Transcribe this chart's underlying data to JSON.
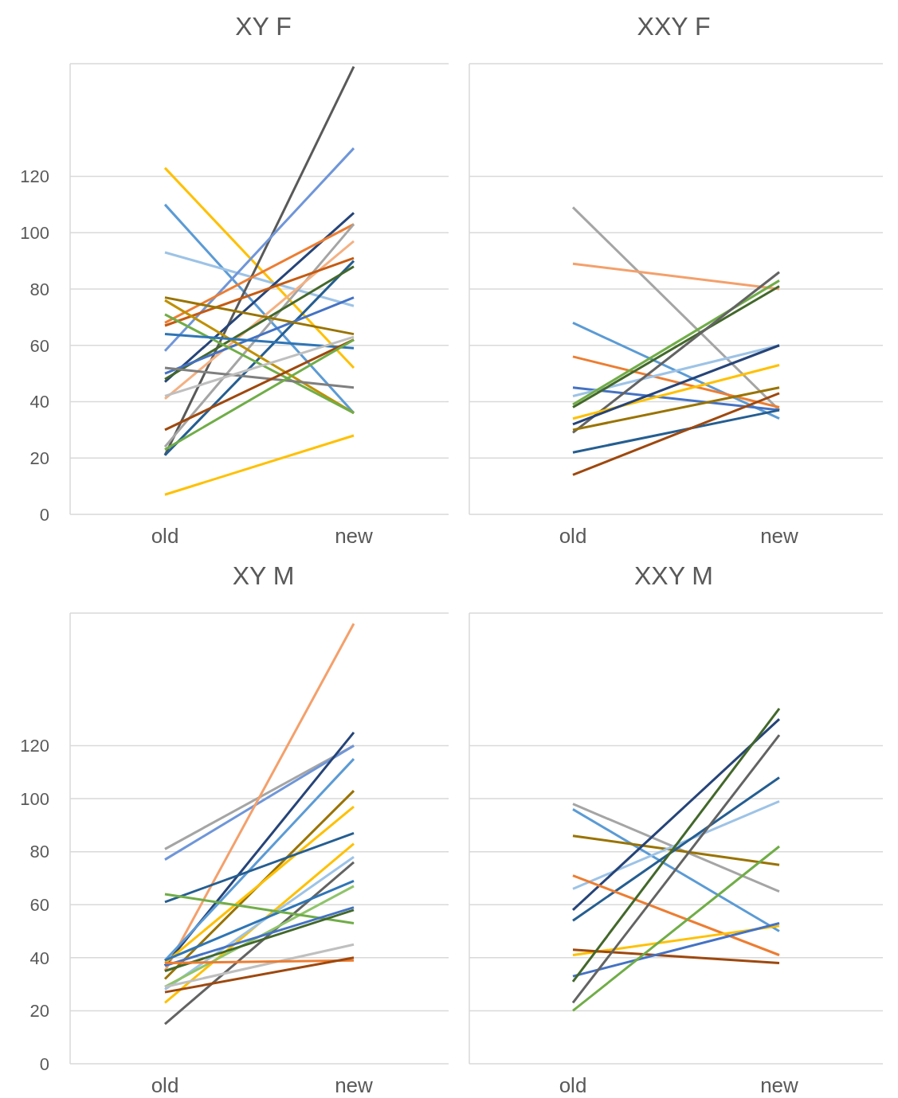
{
  "chart_data": [
    {
      "type": "line",
      "title": "XY F",
      "categories": [
        "old",
        "new"
      ],
      "ylim": [
        0,
        160
      ],
      "yticks": [
        0,
        20,
        40,
        60,
        80,
        100,
        120
      ],
      "grid": "y",
      "marker": "none",
      "series": [
        {
          "color": "#ffc000",
          "values": [
            123,
            52
          ]
        },
        {
          "color": "#5b9bd5",
          "values": [
            110,
            36
          ]
        },
        {
          "color": "#9dc3e6",
          "values": [
            93,
            74
          ]
        },
        {
          "color": "#595959",
          "values": [
            21,
            159
          ]
        },
        {
          "color": "#6f96d9",
          "values": [
            58,
            130
          ]
        },
        {
          "color": "#264478",
          "values": [
            47,
            107
          ]
        },
        {
          "color": "#ed7d31",
          "values": [
            68,
            103
          ]
        },
        {
          "color": "#a5a5a5",
          "values": [
            24,
            103
          ]
        },
        {
          "color": "#f4b183",
          "values": [
            41,
            97
          ]
        },
        {
          "color": "#c55a11",
          "values": [
            67,
            91
          ]
        },
        {
          "color": "#255e91",
          "values": [
            21,
            90
          ]
        },
        {
          "color": "#43682b",
          "values": [
            48,
            88
          ]
        },
        {
          "color": "#4472c4",
          "values": [
            50,
            77
          ]
        },
        {
          "color": "#997300",
          "values": [
            77,
            64
          ]
        },
        {
          "color": "#bf9000",
          "values": [
            76,
            36
          ]
        },
        {
          "color": "#70ad47",
          "values": [
            71,
            36
          ]
        },
        {
          "color": "#2e75b6",
          "values": [
            64,
            59
          ]
        },
        {
          "color": "#7f7f7f",
          "values": [
            52,
            45
          ]
        },
        {
          "color": "#bfbfbf",
          "values": [
            42,
            63
          ]
        },
        {
          "color": "#9e480e",
          "values": [
            30,
            62
          ]
        },
        {
          "color": "#70ad47",
          "values": [
            23,
            62
          ]
        },
        {
          "color": "#ffc000",
          "values": [
            7,
            28
          ]
        }
      ]
    },
    {
      "type": "line",
      "title": "XXY F",
      "categories": [
        "old",
        "new"
      ],
      "ylim": [
        0,
        160
      ],
      "yticks": [
        0,
        20,
        40,
        60,
        80,
        100,
        120
      ],
      "grid": "y",
      "marker": "none",
      "tick_labels": "x",
      "series": [
        {
          "color": "#a5a5a5",
          "values": [
            109,
            37
          ]
        },
        {
          "color": "#f4a06b",
          "values": [
            89,
            80
          ]
        },
        {
          "color": "#5b9bd5",
          "values": [
            68,
            34
          ]
        },
        {
          "color": "#ed7d31",
          "values": [
            56,
            38
          ]
        },
        {
          "color": "#4472c4",
          "values": [
            45,
            37
          ]
        },
        {
          "color": "#9dc3e6",
          "values": [
            42,
            60
          ]
        },
        {
          "color": "#70ad47",
          "values": [
            39,
            83
          ]
        },
        {
          "color": "#43682b",
          "values": [
            38,
            81
          ]
        },
        {
          "color": "#636363",
          "values": [
            29,
            86
          ]
        },
        {
          "color": "#ffc000",
          "values": [
            34,
            53
          ]
        },
        {
          "color": "#264478",
          "values": [
            32,
            60
          ]
        },
        {
          "color": "#997300",
          "values": [
            30,
            45
          ]
        },
        {
          "color": "#255e91",
          "values": [
            22,
            37
          ]
        },
        {
          "color": "#9e480e",
          "values": [
            14,
            43
          ]
        }
      ]
    },
    {
      "type": "line",
      "title": "XY M",
      "categories": [
        "old",
        "new"
      ],
      "ylim": [
        0,
        170
      ],
      "yticks": [
        0,
        20,
        40,
        60,
        80,
        100,
        120
      ],
      "grid": "y",
      "marker": "none",
      "series": [
        {
          "color": "#a5a5a5",
          "values": [
            81,
            120
          ]
        },
        {
          "color": "#6f96d9",
          "values": [
            77,
            120
          ]
        },
        {
          "color": "#f4a06b",
          "values": [
            35,
            166
          ]
        },
        {
          "color": "#264478",
          "values": [
            37,
            125
          ]
        },
        {
          "color": "#5b9bd5",
          "values": [
            39,
            115
          ]
        },
        {
          "color": "#997300",
          "values": [
            32,
            103
          ]
        },
        {
          "color": "#ffc000",
          "values": [
            38,
            97
          ]
        },
        {
          "color": "#255e91",
          "values": [
            61,
            87
          ]
        },
        {
          "color": "#ffc000",
          "values": [
            23,
            83
          ]
        },
        {
          "color": "#9dc3e6",
          "values": [
            28,
            78
          ]
        },
        {
          "color": "#636363",
          "values": [
            15,
            76
          ]
        },
        {
          "color": "#2e75b6",
          "values": [
            39,
            69
          ]
        },
        {
          "color": "#8fc46a",
          "values": [
            29,
            67
          ]
        },
        {
          "color": "#70ad47",
          "values": [
            64,
            53
          ]
        },
        {
          "color": "#4472c4",
          "values": [
            37,
            59
          ]
        },
        {
          "color": "#43682b",
          "values": [
            35,
            58
          ]
        },
        {
          "color": "#bfbfbf",
          "values": [
            29,
            45
          ]
        },
        {
          "color": "#ed7d31",
          "values": [
            38,
            39
          ]
        },
        {
          "color": "#9e480e",
          "values": [
            27,
            40
          ]
        }
      ]
    },
    {
      "type": "line",
      "title": "XXY M",
      "categories": [
        "old",
        "new"
      ],
      "ylim": [
        0,
        170
      ],
      "yticks": [
        0,
        20,
        40,
        60,
        80,
        100,
        120
      ],
      "grid": "y",
      "marker": "none",
      "tick_labels": "x",
      "series": [
        {
          "color": "#a5a5a5",
          "values": [
            98,
            65
          ]
        },
        {
          "color": "#5b9bd5",
          "values": [
            96,
            50
          ]
        },
        {
          "color": "#997300",
          "values": [
            86,
            75
          ]
        },
        {
          "color": "#9dc3e6",
          "values": [
            66,
            99
          ]
        },
        {
          "color": "#264478",
          "values": [
            58,
            130
          ]
        },
        {
          "color": "#255e91",
          "values": [
            54,
            108
          ]
        },
        {
          "color": "#ed7d31",
          "values": [
            71,
            41
          ]
        },
        {
          "color": "#ffc000",
          "values": [
            41,
            52
          ]
        },
        {
          "color": "#9e480e",
          "values": [
            43,
            38
          ]
        },
        {
          "color": "#4472c4",
          "values": [
            33,
            53
          ]
        },
        {
          "color": "#43682b",
          "values": [
            31,
            134
          ]
        },
        {
          "color": "#636363",
          "values": [
            23,
            124
          ]
        },
        {
          "color": "#70ad47",
          "values": [
            20,
            82
          ]
        }
      ]
    }
  ]
}
